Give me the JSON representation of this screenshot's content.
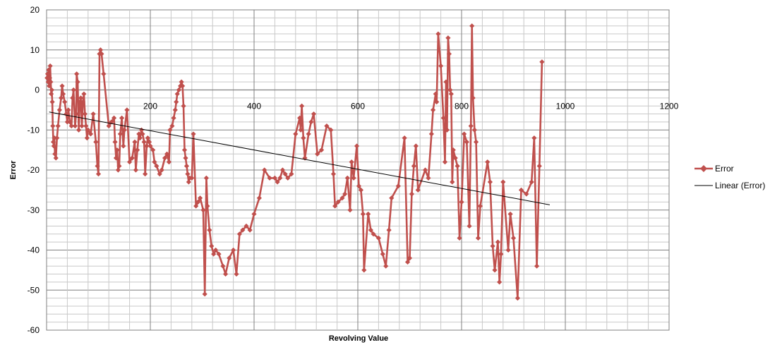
{
  "chart_data": {
    "type": "line",
    "xlabel": "Revolving Value",
    "ylabel": "Error",
    "xlim": [
      0,
      1200
    ],
    "ylim": [
      -60,
      20
    ],
    "xticks": [
      200,
      400,
      600,
      800,
      1000,
      1200
    ],
    "yticks": [
      20,
      10,
      0,
      -10,
      -20,
      -30,
      -40,
      -50,
      -60
    ],
    "grid": true,
    "legend_position": "right",
    "series": [
      {
        "name": "Error",
        "color": "#c0504d",
        "marker": "diamond",
        "points": [
          [
            1,
            3
          ],
          [
            2,
            4
          ],
          [
            3,
            2
          ],
          [
            4,
            5
          ],
          [
            5,
            1
          ],
          [
            6,
            3
          ],
          [
            7,
            6
          ],
          [
            8,
            2
          ],
          [
            9,
            -1
          ],
          [
            10,
            0
          ],
          [
            11,
            -3
          ],
          [
            12,
            -9
          ],
          [
            13,
            -13
          ],
          [
            14,
            -14
          ],
          [
            15,
            -12
          ],
          [
            16,
            -16
          ],
          [
            18,
            -17
          ],
          [
            20,
            -12
          ],
          [
            22,
            -9
          ],
          [
            25,
            -5
          ],
          [
            28,
            -2
          ],
          [
            30,
            1
          ],
          [
            32,
            -1
          ],
          [
            35,
            -3
          ],
          [
            38,
            -6
          ],
          [
            40,
            -8
          ],
          [
            42,
            -5
          ],
          [
            45,
            -8
          ],
          [
            48,
            -9
          ],
          [
            50,
            -2
          ],
          [
            52,
            0
          ],
          [
            55,
            -9
          ],
          [
            57,
            -6
          ],
          [
            58,
            4
          ],
          [
            60,
            2
          ],
          [
            62,
            -10
          ],
          [
            64,
            -3
          ],
          [
            66,
            -2
          ],
          [
            68,
            -9
          ],
          [
            70,
            -3
          ],
          [
            72,
            -1
          ],
          [
            74,
            -6
          ],
          [
            76,
            -9
          ],
          [
            78,
            -12
          ],
          [
            80,
            -10
          ],
          [
            85,
            -11
          ],
          [
            90,
            -6
          ],
          [
            95,
            -13
          ],
          [
            98,
            -19
          ],
          [
            100,
            -21
          ],
          [
            102,
            9
          ],
          [
            104,
            10
          ],
          [
            106,
            9
          ],
          [
            110,
            4
          ],
          [
            120,
            -9
          ],
          [
            125,
            -8
          ],
          [
            130,
            -7
          ],
          [
            132,
            -13
          ],
          [
            134,
            -17
          ],
          [
            136,
            -15
          ],
          [
            138,
            -20
          ],
          [
            140,
            -19
          ],
          [
            142,
            -11
          ],
          [
            145,
            -7
          ],
          [
            148,
            -14
          ],
          [
            150,
            -10
          ],
          [
            155,
            -5
          ],
          [
            160,
            -18
          ],
          [
            165,
            -17
          ],
          [
            170,
            -13
          ],
          [
            172,
            -20
          ],
          [
            175,
            -15
          ],
          [
            178,
            -11
          ],
          [
            180,
            -12
          ],
          [
            183,
            -10
          ],
          [
            185,
            -11
          ],
          [
            188,
            -13
          ],
          [
            190,
            -21
          ],
          [
            193,
            -14
          ],
          [
            195,
            -12
          ],
          [
            198,
            -13
          ],
          [
            200,
            -14
          ],
          [
            205,
            -15
          ],
          [
            208,
            -18
          ],
          [
            212,
            -19
          ],
          [
            218,
            -21
          ],
          [
            222,
            -20
          ],
          [
            228,
            -17
          ],
          [
            232,
            -16
          ],
          [
            236,
            -18
          ],
          [
            238,
            -10
          ],
          [
            242,
            -9
          ],
          [
            245,
            -7
          ],
          [
            248,
            -5
          ],
          [
            250,
            -3
          ],
          [
            252,
            -1
          ],
          [
            255,
            0
          ],
          [
            258,
            1
          ],
          [
            260,
            2
          ],
          [
            262,
            1
          ],
          [
            264,
            -4
          ],
          [
            266,
            -15
          ],
          [
            268,
            -17
          ],
          [
            270,
            -19
          ],
          [
            272,
            -21
          ],
          [
            274,
            -23
          ],
          [
            276,
            -22
          ],
          [
            280,
            -22
          ],
          [
            283,
            -11
          ],
          [
            288,
            -29
          ],
          [
            292,
            -28
          ],
          [
            296,
            -27
          ],
          [
            302,
            -30
          ],
          [
            305,
            -51
          ],
          [
            308,
            -22
          ],
          [
            310,
            -29
          ],
          [
            314,
            -35
          ],
          [
            318,
            -39
          ],
          [
            322,
            -41
          ],
          [
            326,
            -40
          ],
          [
            332,
            -41
          ],
          [
            340,
            -44
          ],
          [
            345,
            -46
          ],
          [
            352,
            -42
          ],
          [
            360,
            -40
          ],
          [
            366,
            -46
          ],
          [
            372,
            -36
          ],
          [
            378,
            -35
          ],
          [
            385,
            -34
          ],
          [
            392,
            -35
          ],
          [
            400,
            -31
          ],
          [
            410,
            -27
          ],
          [
            420,
            -20
          ],
          [
            430,
            -22
          ],
          [
            440,
            -22
          ],
          [
            445,
            -23
          ],
          [
            450,
            -22
          ],
          [
            455,
            -20
          ],
          [
            460,
            -21
          ],
          [
            465,
            -22
          ],
          [
            472,
            -21
          ],
          [
            480,
            -11
          ],
          [
            488,
            -7
          ],
          [
            490,
            -10
          ],
          [
            492,
            -4
          ],
          [
            495,
            -12
          ],
          [
            498,
            -17
          ],
          [
            505,
            -11
          ],
          [
            510,
            -8
          ],
          [
            515,
            -6
          ],
          [
            522,
            -16
          ],
          [
            530,
            -15
          ],
          [
            540,
            -9
          ],
          [
            548,
            -10
          ],
          [
            553,
            -21
          ],
          [
            556,
            -29
          ],
          [
            562,
            -28
          ],
          [
            570,
            -27
          ],
          [
            575,
            -26
          ],
          [
            580,
            -22
          ],
          [
            585,
            -30
          ],
          [
            588,
            -18
          ],
          [
            592,
            -22
          ],
          [
            598,
            -14
          ],
          [
            602,
            -24
          ],
          [
            606,
            -25
          ],
          [
            610,
            -31
          ],
          [
            612,
            -45
          ],
          [
            620,
            -31
          ],
          [
            625,
            -35
          ],
          [
            630,
            -36
          ],
          [
            640,
            -37
          ],
          [
            648,
            -41
          ],
          [
            654,
            -44
          ],
          [
            660,
            -35
          ],
          [
            665,
            -27
          ],
          [
            678,
            -24
          ],
          [
            690,
            -12
          ],
          [
            696,
            -43
          ],
          [
            700,
            -42
          ],
          [
            704,
            -26
          ],
          [
            708,
            -19
          ],
          [
            712,
            -14
          ],
          [
            716,
            -25
          ],
          [
            730,
            -20
          ],
          [
            736,
            -22
          ],
          [
            742,
            -11
          ],
          [
            745,
            -5
          ],
          [
            750,
            -1
          ],
          [
            752,
            -3
          ],
          [
            755,
            14
          ],
          [
            760,
            6
          ],
          [
            765,
            -7
          ],
          [
            768,
            -18
          ],
          [
            770,
            2
          ],
          [
            772,
            -10
          ],
          [
            774,
            13
          ],
          [
            776,
            9
          ],
          [
            778,
            0
          ],
          [
            780,
            -1
          ],
          [
            782,
            -23
          ],
          [
            784,
            -15
          ],
          [
            788,
            -17
          ],
          [
            792,
            -19
          ],
          [
            796,
            -37
          ],
          [
            800,
            -28
          ],
          [
            805,
            -11
          ],
          [
            810,
            -13
          ],
          [
            815,
            -34
          ],
          [
            818,
            -9
          ],
          [
            820,
            16
          ],
          [
            822,
            -2
          ],
          [
            825,
            -10
          ],
          [
            828,
            -13
          ],
          [
            832,
            -37
          ],
          [
            836,
            -29
          ],
          [
            850,
            -18
          ],
          [
            855,
            -23
          ],
          [
            860,
            -39
          ],
          [
            864,
            -45
          ],
          [
            870,
            -38
          ],
          [
            873,
            -48
          ],
          [
            876,
            -41
          ],
          [
            880,
            -23
          ],
          [
            890,
            -40
          ],
          [
            894,
            -31
          ],
          [
            900,
            -37
          ],
          [
            908,
            -52
          ],
          [
            915,
            -25
          ],
          [
            925,
            -26
          ],
          [
            935,
            -23
          ],
          [
            940,
            -12
          ],
          [
            945,
            -44
          ],
          [
            950,
            -19
          ],
          [
            955,
            7
          ]
        ]
      },
      {
        "name": "Linear (Error)",
        "color": "#000000",
        "type": "trendline",
        "points": [
          [
            5,
            -5.5
          ],
          [
            970,
            -28.7
          ]
        ]
      }
    ]
  }
}
